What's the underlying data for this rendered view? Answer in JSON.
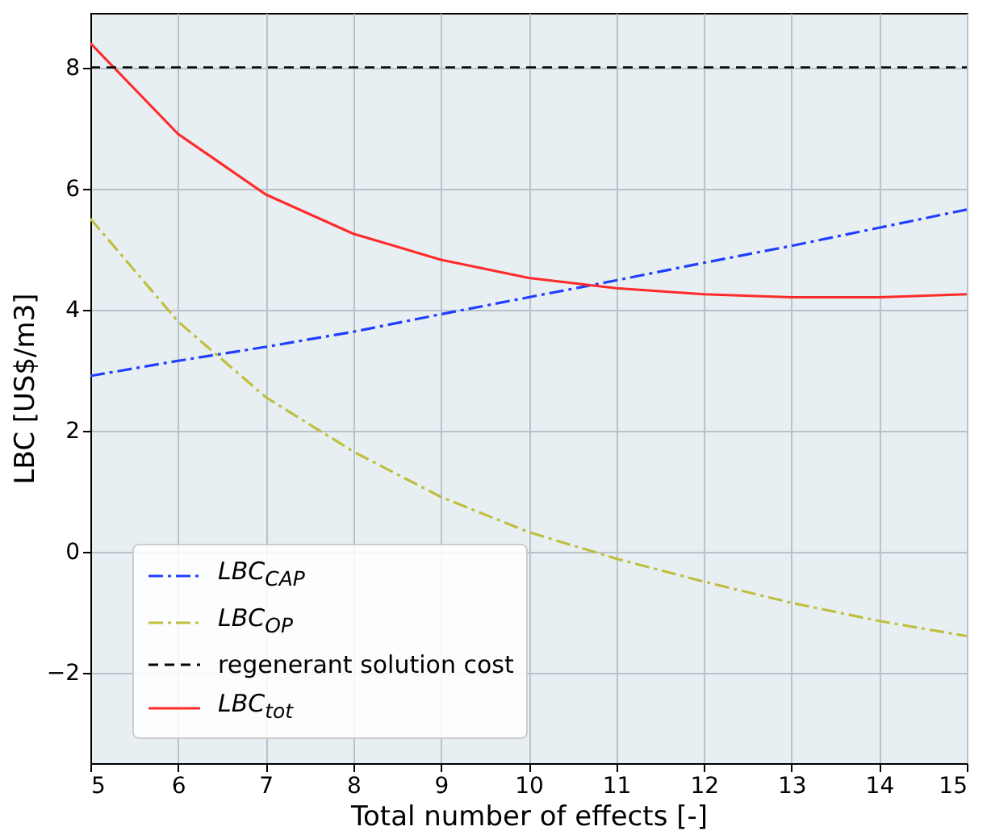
{
  "chart_data": {
    "type": "line",
    "xlabel": "Total number of effects [-]",
    "ylabel": "LBC [US$/m3]",
    "x": [
      5,
      6,
      7,
      8,
      9,
      10,
      11,
      12,
      13,
      14,
      15
    ],
    "series": [
      {
        "name": "LBC$_{CAP}$",
        "color": "#1f3fff",
        "line_style": "dashdot",
        "values": [
          2.9,
          3.15,
          3.38,
          3.63,
          3.92,
          4.2,
          4.48,
          4.77,
          5.05,
          5.35,
          5.65
        ]
      },
      {
        "name": "LBC$_{OP}$",
        "color": "#bfbf3f",
        "line_style": "dashdot",
        "values": [
          5.5,
          3.8,
          2.55,
          1.65,
          0.9,
          0.32,
          -0.12,
          -0.5,
          -0.85,
          -1.15,
          -1.4
        ]
      },
      {
        "name": "LBC$_{tot}$",
        "color": "#ff2a2a",
        "line_style": "solid",
        "values": [
          8.4,
          6.9,
          5.9,
          5.25,
          4.82,
          4.52,
          4.35,
          4.25,
          4.2,
          4.2,
          4.25
        ]
      }
    ],
    "ref_lines": [
      {
        "axis": "y",
        "value": 8,
        "label": "regenerant solution cost",
        "color": "#000000",
        "line_style": "dashed"
      }
    ],
    "xlim": [
      5,
      15
    ],
    "ylim": [
      -3.5,
      8.9
    ],
    "xticks": [
      5,
      6,
      7,
      8,
      9,
      10,
      11,
      12,
      13,
      14,
      15
    ],
    "yticks": [
      -2,
      0,
      2,
      4,
      6,
      8
    ],
    "grid": true,
    "legend": "bottom left",
    "marker": "none"
  }
}
